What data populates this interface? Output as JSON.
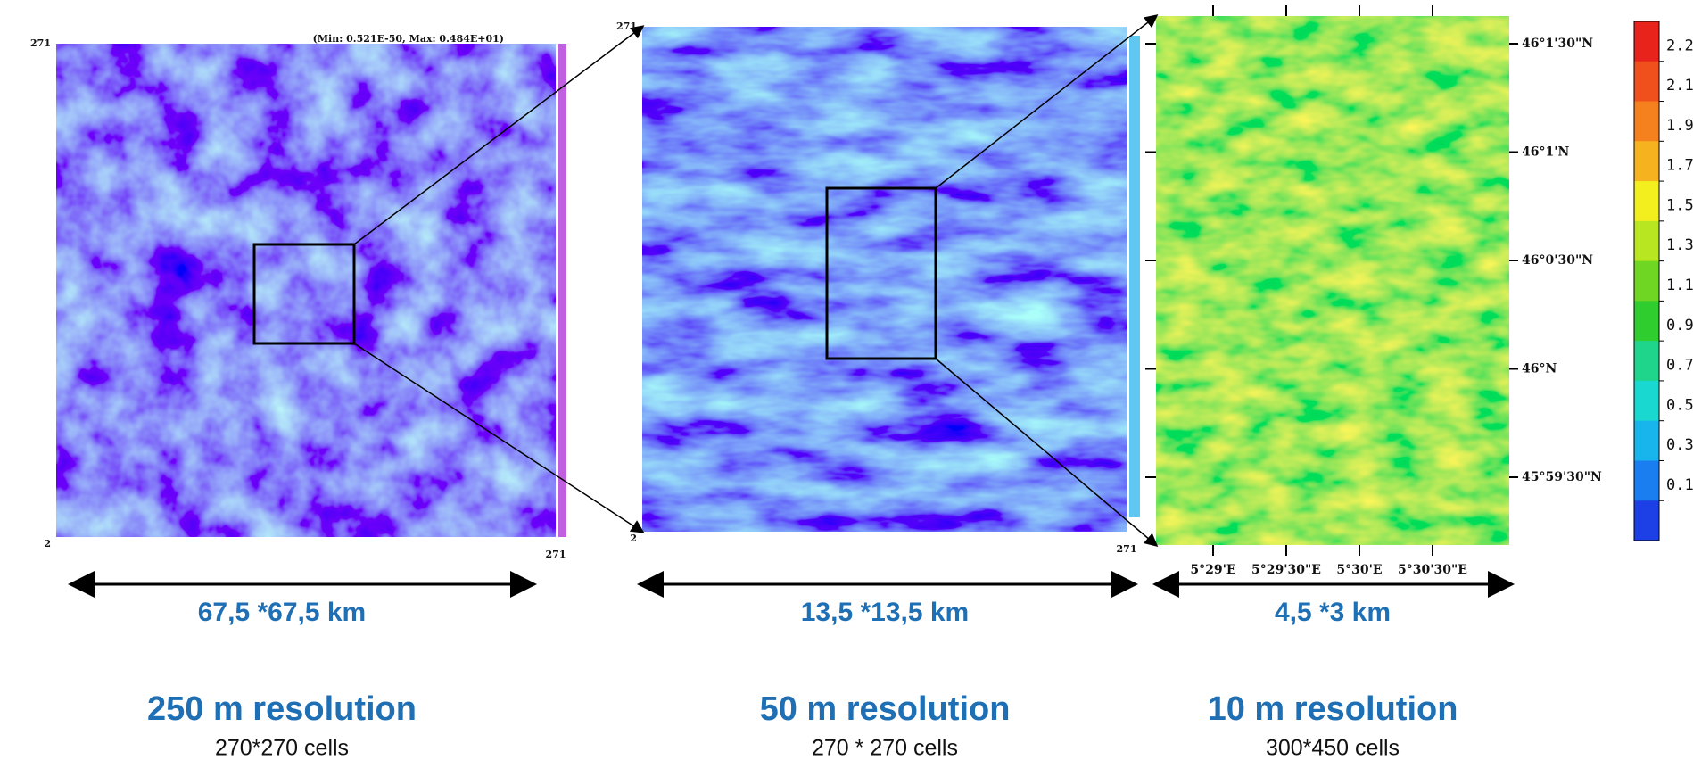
{
  "panels": [
    {
      "extent": "67,5 *67,5 km",
      "resolution": "250 m resolution",
      "cells": "270*270 cells",
      "axis_top": "271",
      "axis_bottom": "2",
      "axis_right": "271",
      "note": "(Min: 0.521E-50, Max: 0.484E+01)"
    },
    {
      "extent": "13,5 *13,5 km",
      "resolution": "50 m resolution",
      "cells": "270 * 270 cells",
      "axis_top": "271",
      "axis_bottom": "2",
      "axis_right": "271"
    },
    {
      "extent": "4,5 *3 km",
      "resolution": "10 m resolution",
      "cells": "300*450 cells"
    }
  ],
  "latitudes": [
    "46°1'30\"N",
    "46°1'N",
    "46°0'30\"N",
    "46°N",
    "45°59'30\"N"
  ],
  "longitudes": [
    "5°29'E",
    "5°29'30\"E",
    "5°30'E",
    "5°30'30\"E"
  ],
  "colorbar": {
    "labels": [
      "2.2",
      "2.1",
      "1.9",
      "1.7",
      "1.5",
      "1.3",
      "1.1",
      "0.9",
      "0.7",
      "0.5",
      "0.3",
      "0.1"
    ],
    "colors": [
      "#e8231c",
      "#f0501c",
      "#f5801e",
      "#f7b31f",
      "#f3ee1d",
      "#b8e620",
      "#6fd623",
      "#2fcd2e",
      "#1fd58c",
      "#18d8cf",
      "#18b4ec",
      "#1a7ef0",
      "#1c3fe6"
    ]
  }
}
